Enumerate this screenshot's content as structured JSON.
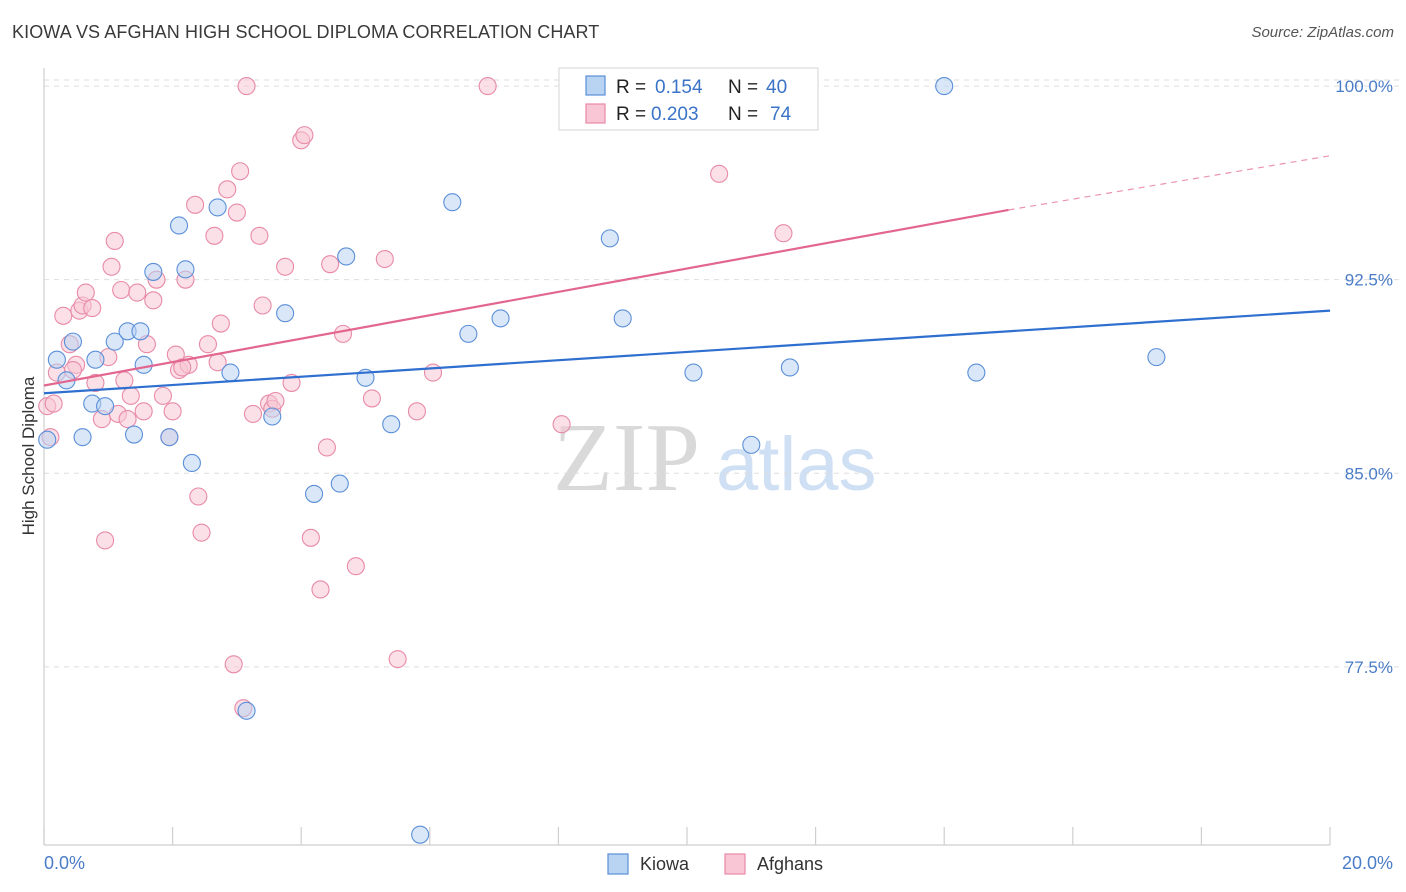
{
  "title": "KIOWA VS AFGHAN HIGH SCHOOL DIPLOMA CORRELATION CHART",
  "source": "Source: ZipAtlas.com",
  "watermark": {
    "zip": "ZIP",
    "atlas": "atlas"
  },
  "colors": {
    "kiowa_fill": "#b9d3f3",
    "kiowa_stroke": "#5b8fd8",
    "kiowa_line": "#2f6fcf",
    "afghan_fill": "#f8c6d4",
    "afghan_stroke": "#e88aa8",
    "afghan_line": "#e2668f",
    "tick_label": "#4a7cc7",
    "grid": "#dedede"
  },
  "legend": {
    "rows": [
      {
        "r_label": "R =",
        "r_value": "0.154",
        "n_label": "N =",
        "n_value": "40"
      },
      {
        "r_label": "R =",
        "r_value": "0.203",
        "n_label": "N =",
        "n_value": "74"
      }
    ]
  },
  "bottom_legend": {
    "kiowa": "Kiowa",
    "afghans": "Afghans"
  },
  "chart_data": {
    "type": "scatter",
    "title": "KIOWA VS AFGHAN HIGH SCHOOL DIPLOMA CORRELATION CHART",
    "xlabel": "",
    "ylabel": "High School Diploma",
    "xlim": [
      0,
      20
    ],
    "ylim": [
      70.6,
      100.7
    ],
    "x_tick_labels": [
      "0.0%",
      "20.0%"
    ],
    "y_ticks": [
      77.5,
      85.0,
      92.5,
      100.0
    ],
    "y_tick_labels": [
      "77.5%",
      "85.0%",
      "92.5%",
      "100.0%"
    ],
    "grid": true,
    "series": [
      {
        "name": "Kiowa",
        "r": 0.154,
        "n": 40,
        "trend": {
          "x0": 0,
          "y0": 88.1,
          "x1": 20,
          "y1": 91.3
        },
        "points": [
          [
            0.05,
            86.3
          ],
          [
            0.2,
            89.4
          ],
          [
            0.35,
            88.6
          ],
          [
            0.45,
            90.1
          ],
          [
            0.6,
            86.4
          ],
          [
            0.75,
            87.7
          ],
          [
            0.8,
            89.4
          ],
          [
            0.95,
            87.6
          ],
          [
            1.1,
            90.1
          ],
          [
            1.3,
            90.5
          ],
          [
            1.4,
            86.5
          ],
          [
            1.5,
            90.5
          ],
          [
            1.55,
            89.2
          ],
          [
            1.7,
            92.8
          ],
          [
            1.95,
            86.4
          ],
          [
            2.1,
            94.6
          ],
          [
            2.2,
            92.9
          ],
          [
            2.3,
            85.4
          ],
          [
            2.7,
            95.3
          ],
          [
            2.9,
            88.9
          ],
          [
            3.15,
            75.8
          ],
          [
            3.55,
            87.2
          ],
          [
            3.75,
            91.2
          ],
          [
            4.2,
            84.2
          ],
          [
            4.6,
            84.6
          ],
          [
            4.7,
            93.4
          ],
          [
            5.0,
            88.7
          ],
          [
            5.4,
            86.9
          ],
          [
            5.85,
            71.0
          ],
          [
            6.35,
            95.5
          ],
          [
            6.6,
            90.4
          ],
          [
            7.1,
            91.0
          ],
          [
            8.8,
            94.1
          ],
          [
            9.0,
            91.0
          ],
          [
            10.1,
            88.9
          ],
          [
            11.0,
            86.1
          ],
          [
            11.6,
            89.1
          ],
          [
            14.0,
            100.0
          ],
          [
            14.5,
            88.9
          ],
          [
            17.3,
            89.5
          ]
        ]
      },
      {
        "name": "Afghans",
        "r": 0.203,
        "n": 74,
        "trend": {
          "x0": 0,
          "y0": 88.4,
          "x1": 15,
          "y1": 95.2,
          "dash_x1": 20,
          "dash_y1": 97.3
        },
        "points": [
          [
            0.05,
            87.6
          ],
          [
            0.1,
            86.4
          ],
          [
            0.2,
            88.9
          ],
          [
            0.3,
            91.1
          ],
          [
            0.4,
            90.0
          ],
          [
            0.5,
            89.2
          ],
          [
            0.55,
            91.3
          ],
          [
            0.6,
            91.5
          ],
          [
            0.65,
            92.0
          ],
          [
            0.75,
            91.4
          ],
          [
            0.8,
            88.5
          ],
          [
            0.9,
            87.1
          ],
          [
            0.95,
            82.4
          ],
          [
            1.0,
            89.5
          ],
          [
            1.05,
            93.0
          ],
          [
            1.1,
            94.0
          ],
          [
            1.15,
            87.3
          ],
          [
            1.2,
            92.1
          ],
          [
            1.3,
            87.1
          ],
          [
            1.35,
            88.0
          ],
          [
            1.45,
            92.0
          ],
          [
            1.55,
            87.4
          ],
          [
            1.6,
            90.0
          ],
          [
            1.7,
            91.7
          ],
          [
            1.75,
            92.5
          ],
          [
            1.85,
            88.0
          ],
          [
            1.95,
            86.4
          ],
          [
            2.0,
            87.4
          ],
          [
            2.05,
            89.6
          ],
          [
            2.1,
            89.0
          ],
          [
            2.2,
            92.5
          ],
          [
            2.25,
            89.2
          ],
          [
            2.35,
            95.4
          ],
          [
            2.4,
            84.1
          ],
          [
            2.45,
            82.7
          ],
          [
            2.55,
            90.0
          ],
          [
            2.65,
            94.2
          ],
          [
            2.7,
            89.3
          ],
          [
            2.75,
            90.8
          ],
          [
            2.85,
            96.0
          ],
          [
            2.95,
            77.6
          ],
          [
            3.0,
            95.1
          ],
          [
            3.05,
            96.7
          ],
          [
            3.1,
            75.9
          ],
          [
            3.15,
            100.0
          ],
          [
            3.25,
            87.3
          ],
          [
            3.35,
            94.2
          ],
          [
            3.4,
            91.5
          ],
          [
            3.5,
            87.7
          ],
          [
            3.55,
            87.5
          ],
          [
            3.75,
            93.0
          ],
          [
            3.85,
            88.5
          ],
          [
            4.0,
            97.9
          ],
          [
            4.05,
            98.1
          ],
          [
            4.15,
            82.5
          ],
          [
            4.3,
            80.5
          ],
          [
            4.4,
            86.0
          ],
          [
            4.45,
            93.1
          ],
          [
            4.65,
            90.4
          ],
          [
            4.85,
            81.4
          ],
          [
            5.1,
            87.9
          ],
          [
            5.3,
            93.3
          ],
          [
            5.5,
            77.8
          ],
          [
            5.8,
            87.4
          ],
          [
            6.05,
            88.9
          ],
          [
            6.9,
            100.0
          ],
          [
            8.05,
            86.9
          ],
          [
            10.5,
            96.6
          ],
          [
            11.5,
            94.3
          ],
          [
            0.15,
            87.7
          ],
          [
            0.45,
            89.0
          ],
          [
            1.25,
            88.6
          ],
          [
            2.15,
            89.1
          ],
          [
            3.6,
            87.8
          ]
        ]
      }
    ]
  }
}
